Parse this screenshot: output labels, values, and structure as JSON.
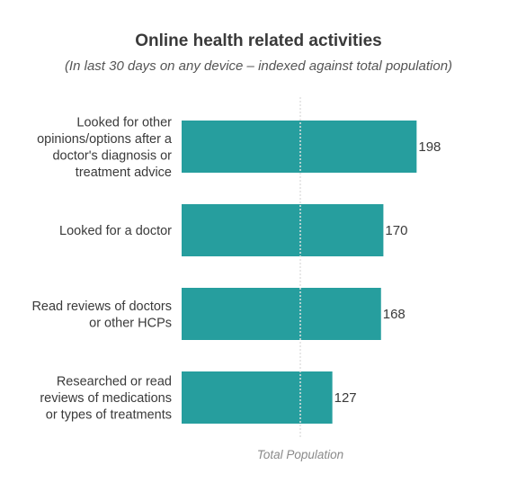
{
  "chart_data": {
    "type": "bar",
    "orientation": "horizontal",
    "title": "Online health related activities",
    "subtitle": "(In last 30 days on any device – indexed against total population)",
    "categories": [
      [
        "Looked for other",
        "opinions/options after a",
        "doctor's diagnosis or",
        "treatment advice"
      ],
      [
        "Looked for a doctor"
      ],
      [
        "Read reviews of doctors",
        "or other HCPs"
      ],
      [
        "Researched or read",
        "reviews of medications",
        "or types of treatments"
      ]
    ],
    "values": [
      198,
      170,
      168,
      127
    ],
    "data_labels": [
      "198",
      "170",
      "168",
      "127"
    ],
    "reference_line": {
      "value": 100,
      "label": "Total Population",
      "style": "dotted"
    },
    "xlim": [
      0,
      198
    ],
    "grid": false,
    "legend": "none",
    "colors": {
      "bar": "#269E9E",
      "reference_line": "#e0e0e0",
      "text": "#3a3a3a"
    }
  }
}
